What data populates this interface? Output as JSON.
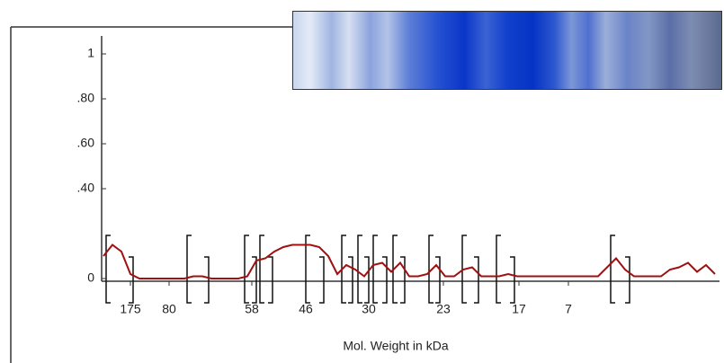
{
  "chart_data": {
    "type": "line",
    "x_label": "Mol. Weight in kDa",
    "xticklabels": [
      "175",
      "80",
      "58",
      "46",
      "30",
      "23",
      "17",
      "7"
    ],
    "ylim": [
      0,
      1.08
    ],
    "yticks": [
      0,
      {
        "value": 0.4,
        "label": ".40"
      },
      {
        "value": 0.6,
        "label": ".60"
      },
      {
        "value": 0.8,
        "label": ".80"
      },
      1
    ],
    "color": "#a01010",
    "values": [
      0.1,
      0.15,
      0.12,
      0.02,
      0,
      0,
      0,
      0,
      0,
      0,
      0.01,
      0.01,
      0,
      0,
      0,
      0,
      0.01,
      0.08,
      0.09,
      0.12,
      0.14,
      0.15,
      0.15,
      0.15,
      0.14,
      0.1,
      0.02,
      0.06,
      0.04,
      0.01,
      0.06,
      0.07,
      0.03,
      0.07,
      0.01,
      0.01,
      0.02,
      0.06,
      0.01,
      0.01,
      0.04,
      0.05,
      0.01,
      0.01,
      0.01,
      0.02,
      0.01,
      0.01,
      0.01,
      0.01,
      0.01,
      0.01,
      0.01,
      0.01,
      0.01,
      0.01,
      0.05,
      0.09,
      0.04,
      0.01,
      0.01,
      0.01,
      0.01,
      0.04,
      0.05,
      0.07,
      0.03,
      0.06,
      0.02
    ]
  }
}
